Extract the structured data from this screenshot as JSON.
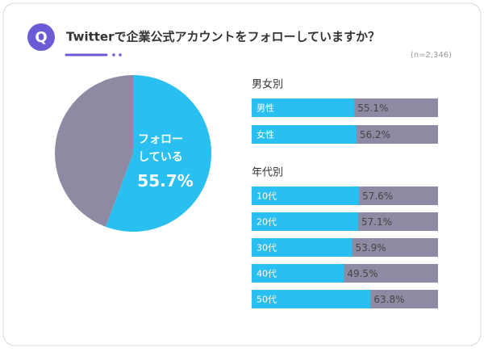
{
  "title": "Twitterで企業公式アカウントをフォローしていますか？",
  "note": "(n=2,346)",
  "chart_data": [
    {
      "type": "pie",
      "categories": [
        "フォローしている",
        null
      ],
      "values": [
        55.7,
        44.3
      ],
      "value_labels": [
        "55.7%",
        null
      ],
      "colors": [
        "#29bff1",
        "#8c8ba3"
      ]
    },
    {
      "type": "bar",
      "title": "男女別",
      "categories": [
        "男性",
        "女性"
      ],
      "values": [
        55.1,
        56.2
      ],
      "value_labels": [
        "55.1%",
        "56.2%"
      ],
      "xlim": [
        0,
        100
      ],
      "color": "#29bff1",
      "track_color": "#8c8ba3"
    },
    {
      "type": "bar",
      "title": "年代別",
      "categories": [
        "10代",
        "20代",
        "30代",
        "40代",
        "50代"
      ],
      "values": [
        57.6,
        57.1,
        53.9,
        49.5,
        63.8
      ],
      "value_labels": [
        "57.6%",
        "57.1%",
        "53.9%",
        "49.5%",
        "63.8%"
      ],
      "xlim": [
        0,
        100
      ],
      "color": "#29bff1",
      "track_color": "#8c8ba3"
    }
  ]
}
